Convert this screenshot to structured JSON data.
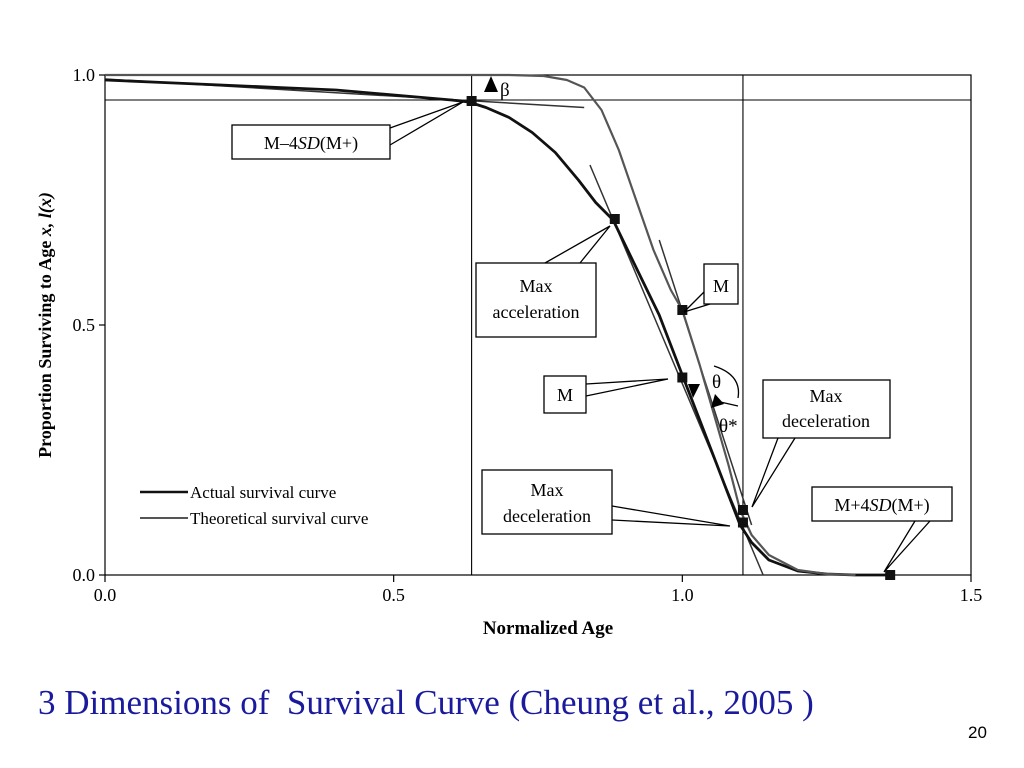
{
  "slide": {
    "caption": "3 Dimensions of  Survival Curve (Cheung et al., 2005 )",
    "page_number": "20"
  },
  "chart_data": {
    "type": "line",
    "xlabel": "Normalized Age",
    "ylabel_prefix": "Proportion Surviving to Age ",
    "ylabel_var": "x, l(x)",
    "xlim": [
      0.0,
      1.5
    ],
    "ylim": [
      0.0,
      1.0
    ],
    "x_ticks": [
      {
        "value": 0.0,
        "label": "0.0"
      },
      {
        "value": 0.5,
        "label": "0.5"
      },
      {
        "value": 1.0,
        "label": "1.0"
      },
      {
        "value": 1.5,
        "label": "1.5"
      }
    ],
    "y_ticks": [
      {
        "value": 0.0,
        "label": "0.0"
      },
      {
        "value": 0.5,
        "label": "0.5"
      },
      {
        "value": 1.0,
        "label": "1.0"
      }
    ],
    "grid": false,
    "legend_position": "bottom-left",
    "series": [
      {
        "name": "Actual survival curve",
        "color": "#111111",
        "x": [
          0.0,
          0.1,
          0.2,
          0.3,
          0.4,
          0.5,
          0.55,
          0.6,
          0.63,
          0.66,
          0.7,
          0.74,
          0.78,
          0.82,
          0.85,
          0.88,
          0.92,
          0.96,
          1.0,
          1.03,
          1.06,
          1.08,
          1.1,
          1.12,
          1.15,
          1.2,
          1.25,
          1.3,
          1.36
        ],
        "y": [
          0.99,
          0.985,
          0.98,
          0.975,
          0.97,
          0.96,
          0.955,
          0.95,
          0.946,
          0.935,
          0.915,
          0.885,
          0.845,
          0.79,
          0.745,
          0.71,
          0.615,
          0.52,
          0.4,
          0.31,
          0.22,
          0.16,
          0.1,
          0.065,
          0.03,
          0.008,
          0.002,
          0.0,
          0.0
        ]
      },
      {
        "name": "Theoretical survival curve",
        "color": "#555555",
        "x": [
          0.0,
          0.1,
          0.2,
          0.3,
          0.4,
          0.5,
          0.6,
          0.64,
          0.7,
          0.76,
          0.8,
          0.83,
          0.86,
          0.89,
          0.92,
          0.95,
          0.98,
          1.0,
          1.03,
          1.06,
          1.08,
          1.1,
          1.12,
          1.15,
          1.2,
          1.25,
          1.3
        ],
        "y": [
          1.0,
          1.0,
          1.0,
          1.0,
          1.0,
          1.0,
          1.0,
          1.0,
          1.0,
          0.998,
          0.99,
          0.975,
          0.93,
          0.85,
          0.75,
          0.65,
          0.57,
          0.53,
          0.42,
          0.3,
          0.22,
          0.13,
          0.08,
          0.04,
          0.01,
          0.002,
          0.0
        ]
      }
    ],
    "tangents": [
      {
        "x": [
          0.0,
          0.83
        ],
        "y": [
          0.992,
          0.935
        ]
      },
      {
        "x": [
          0.84,
          1.14
        ],
        "y": [
          0.82,
          0.0
        ]
      },
      {
        "x": [
          0.96,
          1.12
        ],
        "y": [
          0.67,
          0.1
        ]
      }
    ],
    "reference_lines": {
      "vertical_x": [
        0.635,
        1.105
      ],
      "horizontal_y": [
        0.95
      ]
    },
    "markers": [
      {
        "x": 0.635,
        "y": 0.948
      },
      {
        "x": 0.883,
        "y": 0.712
      },
      {
        "x": 1.0,
        "y": 0.53
      },
      {
        "x": 1.0,
        "y": 0.395
      },
      {
        "x": 1.105,
        "y": 0.13
      },
      {
        "x": 1.105,
        "y": 0.105
      },
      {
        "x": 1.36,
        "y": 0.0
      }
    ],
    "annotations": {
      "m_minus": {
        "prefix": "M–4",
        "italic": "SD",
        "suffix": "(M+)"
      },
      "max_accel_1": "Max",
      "max_accel_2": "acceleration",
      "m_upper": "M",
      "m_lower": "M",
      "max_decel_right_1": "Max",
      "max_decel_right_2": "deceleration",
      "max_decel_left_1": "Max",
      "max_decel_left_2": "deceleration",
      "m_plus": {
        "prefix": "M+4",
        "italic": "SD",
        "suffix": "(M+)"
      },
      "beta": "β",
      "theta": "θ",
      "theta_star": "θ*"
    }
  }
}
